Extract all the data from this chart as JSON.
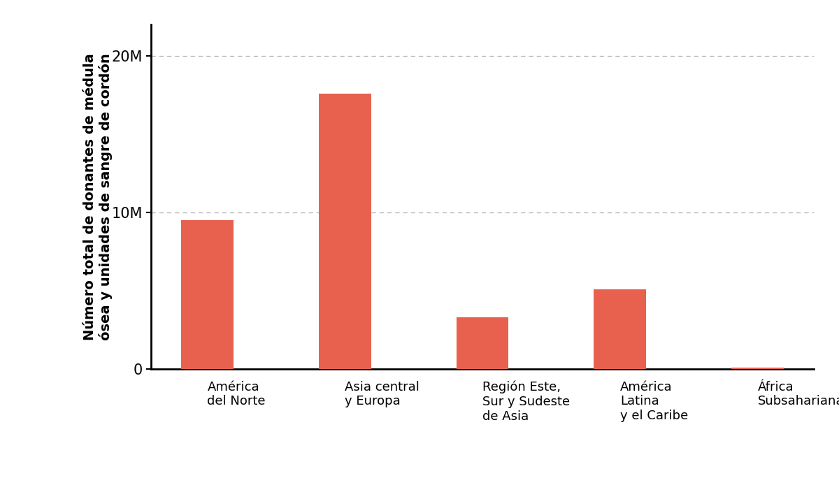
{
  "categories": [
    "América\ndel Norte",
    "Asia central\ny Europa",
    "Región Este,\nSur y Sudeste\nde Asia",
    "América\nLatina\ny el Caribe",
    "África\nSubsahariana"
  ],
  "values": [
    9500000,
    17600000,
    3300000,
    5100000,
    80000
  ],
  "bar_color": "#E8604E",
  "ylabel": "Número total de donantes de médula\nósea y unidades de sangre de cordón",
  "ylim": [
    0,
    22000000
  ],
  "yticks": [
    0,
    10000000,
    20000000
  ],
  "ytick_labels": [
    "0",
    "10M",
    "20M"
  ],
  "background_color": "#ffffff",
  "grid_color": "#b0b0b0",
  "bar_width": 0.38
}
